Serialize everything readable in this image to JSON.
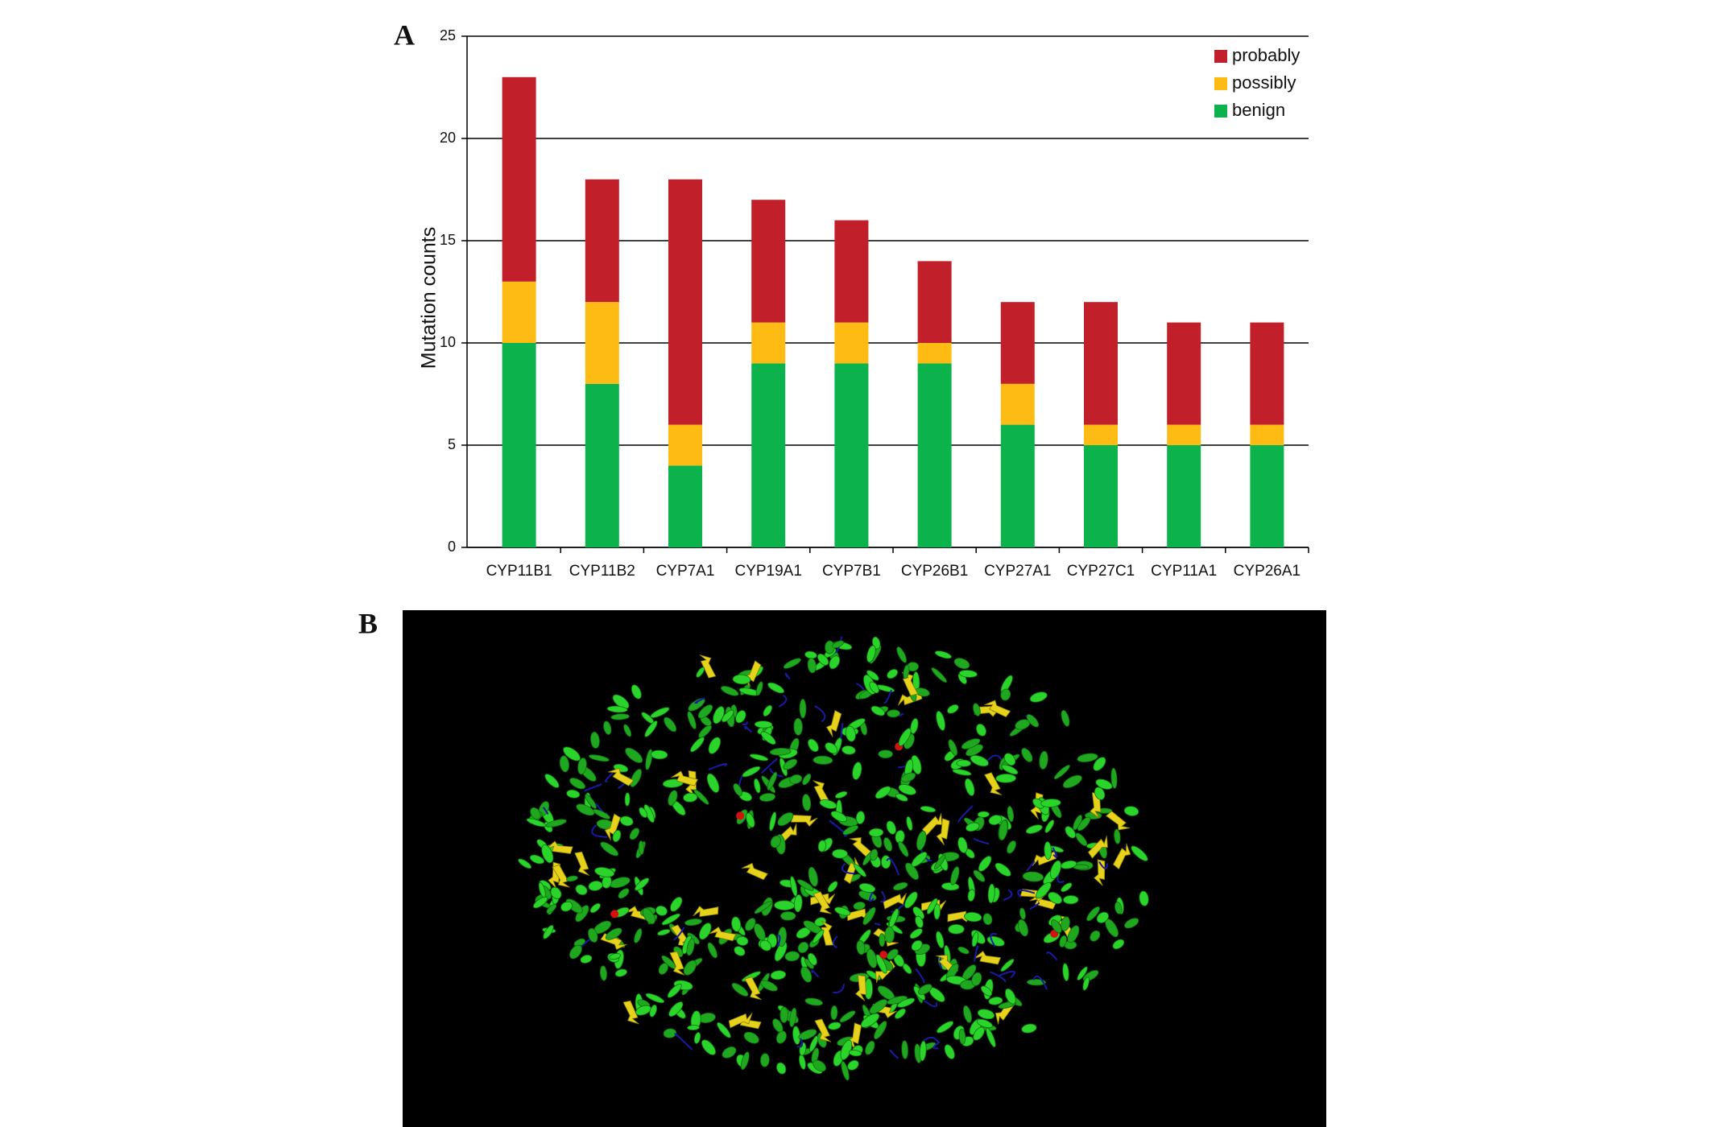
{
  "panel_labels": [
    "A",
    "B"
  ],
  "chart_data": {
    "type": "stacked_bar",
    "y_label": "Mutation counts",
    "categories": [
      "CYP11B1",
      "CYP11B2",
      "CYP7A1",
      "CYP19A1",
      "CYP7B1",
      "CYP26B1",
      "CYP27A1",
      "CYP27C1",
      "CYP11A1",
      "CYP26A1"
    ],
    "series": [
      {
        "name": "probably",
        "color": "#c1202b",
        "values": [
          10,
          6,
          12,
          6,
          5,
          4,
          4,
          6,
          5,
          5
        ]
      },
      {
        "name": "possibly",
        "color": "#fdbb14",
        "values": [
          3,
          4,
          2,
          2,
          2,
          1,
          2,
          1,
          1,
          1
        ]
      },
      {
        "name": "benign",
        "color": "#0cb24c",
        "values": [
          10,
          8,
          4,
          9,
          9,
          9,
          6,
          5,
          5,
          5
        ]
      }
    ],
    "ylim": [
      0,
      25
    ],
    "yticks": [
      0,
      5,
      10,
      15,
      20,
      25
    ],
    "grid": true,
    "legend": "upper right"
  }
}
